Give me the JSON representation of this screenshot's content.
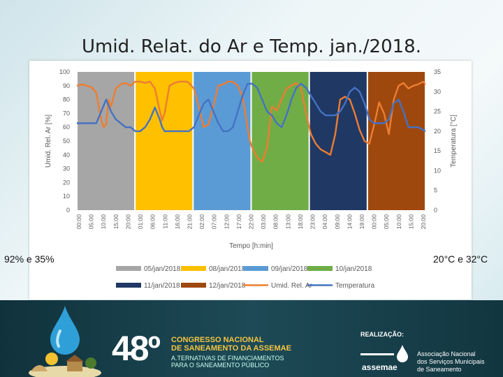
{
  "slide": {
    "title": "Umid. Relat. do Ar e Temp. jan./2018.",
    "left_note": "92% e 35%",
    "right_note": "20°C e 32°C"
  },
  "footer": {
    "number": "48º",
    "event_line1": "CONGRESSO NACIONAL",
    "event_line2": "DE SANEAMENTO DA ASSEMAE",
    "event_line3": "A.TERNATIVAS DE FINANCIAMENTOS",
    "event_line4": "PARA O SANEAMENTO PÚBLICO",
    "realizacao": "REALIZAÇÃO:",
    "org_name": "assemae",
    "org_line1": "Associação Nacional",
    "org_line2": "dos Serviços Municipais",
    "org_line3": "de Saneamento"
  },
  "chart_data": {
    "type": "line",
    "xlabel": "Tempo [h:min]",
    "ylabel": "Umid. Rel. Ar [%]",
    "y2label": "Temperatura [°C]",
    "ylim": [
      0,
      100
    ],
    "y2lim": [
      0,
      35
    ],
    "y_ticks": [
      0,
      10,
      20,
      30,
      40,
      50,
      60,
      70,
      80,
      90,
      100
    ],
    "y2_ticks": [
      0,
      5,
      10,
      15,
      20,
      25,
      30,
      35
    ],
    "x_ticks": [
      "00:00",
      "05:00",
      "10:00",
      "15:00",
      "20:00",
      "01:00",
      "06:00",
      "11:00",
      "16:00",
      "21:00",
      "02:00",
      "07:00",
      "12:00",
      "17:00",
      "22:00",
      "03:00",
      "08:00",
      "13:00",
      "18:00",
      "23:00",
      "04:00",
      "09:00",
      "14:00",
      "19:00",
      "00:00",
      "05:00",
      "10:00",
      "15:00",
      "20:00"
    ],
    "day_bands": [
      {
        "label": "05/jan/2018",
        "color": "#a6a6a6"
      },
      {
        "label": "08/jan/2018",
        "color": "#ffc000"
      },
      {
        "label": "09/jan/2018",
        "color": "#5b9bd5"
      },
      {
        "label": "10/jan/2018",
        "color": "#70ad47"
      },
      {
        "label": "11/jan/2018",
        "color": "#203864"
      },
      {
        "label": "12/jan/2018",
        "color": "#9e480e"
      }
    ],
    "legend": [
      {
        "label": "05/jan/2018",
        "color": "#a6a6a6",
        "kind": "box"
      },
      {
        "label": "08/jan/2018",
        "color": "#ffc000",
        "kind": "box"
      },
      {
        "label": "09/jan/2018",
        "color": "#5b9bd5",
        "kind": "box"
      },
      {
        "label": "10/jan/2018",
        "color": "#70ad47",
        "kind": "box"
      },
      {
        "label": "11/jan/2018",
        "color": "#203864",
        "kind": "box"
      },
      {
        "label": "12/jan/2018",
        "color": "#9e480e",
        "kind": "box"
      },
      {
        "label": "Umid. Rel. Ar",
        "color": "#ed7d31",
        "kind": "line"
      },
      {
        "label": "Temperatura",
        "color": "#4472c4",
        "kind": "line"
      }
    ],
    "series": [
      {
        "name": "Umid. Rel. Ar",
        "axis": "left",
        "color": "#ed7d31",
        "x": [
          0,
          2,
          4,
          6,
          8,
          10,
          11,
          12,
          13,
          14,
          16,
          18,
          20,
          22,
          24,
          26,
          28,
          30,
          32,
          34,
          35,
          36,
          38,
          40,
          42,
          44,
          45,
          46,
          48,
          50,
          52,
          54,
          56,
          58,
          60,
          62,
          64,
          66,
          68,
          70,
          71,
          72,
          74,
          76,
          78,
          80,
          82,
          84,
          86,
          88,
          90,
          92,
          94,
          96,
          98,
          100,
          102,
          104,
          106,
          108,
          110,
          112,
          114,
          116,
          118,
          120,
          122,
          124,
          126,
          128,
          130,
          132,
          134,
          136,
          138,
          140,
          142,
          143
        ],
        "y": [
          90,
          91,
          90,
          89,
          85,
          65,
          60,
          62,
          80,
          75,
          88,
          91,
          92,
          90,
          93,
          93,
          92,
          93,
          88,
          72,
          65,
          70,
          90,
          92,
          93,
          93,
          93,
          92,
          88,
          75,
          60,
          62,
          75,
          90,
          91,
          93,
          93,
          90,
          82,
          60,
          50,
          45,
          38,
          35,
          45,
          75,
          72,
          80,
          88,
          90,
          92,
          88,
          70,
          55,
          48,
          44,
          42,
          40,
          55,
          80,
          82,
          80,
          70,
          58,
          50,
          48,
          62,
          78,
          70,
          55,
          80,
          90,
          92,
          88,
          90,
          91,
          93,
          91
        ]
      },
      {
        "name": "Temperatura",
        "axis": "right",
        "color": "#4472c4",
        "x": [
          0,
          4,
          8,
          10,
          12,
          14,
          16,
          18,
          20,
          22,
          24,
          26,
          28,
          30,
          32,
          34,
          35,
          36,
          38,
          40,
          42,
          44,
          46,
          48,
          50,
          52,
          54,
          56,
          58,
          60,
          62,
          64,
          66,
          68,
          70,
          72,
          74,
          76,
          78,
          80,
          82,
          84,
          86,
          88,
          90,
          92,
          94,
          96,
          98,
          100,
          102,
          104,
          106,
          108,
          110,
          112,
          114,
          116,
          118,
          120,
          122,
          124,
          126,
          128,
          130,
          132,
          134,
          136,
          138,
          140,
          143
        ],
        "y": [
          22,
          22,
          22,
          25,
          28,
          25,
          23,
          22,
          21,
          21,
          20,
          20,
          21,
          23,
          26,
          23,
          21,
          20,
          20,
          20,
          20,
          20,
          20,
          21,
          24,
          27,
          28,
          25,
          22,
          20,
          20,
          21,
          25,
          29,
          32,
          32,
          31,
          28,
          25,
          24,
          22,
          21,
          24,
          28,
          31,
          32,
          31,
          29,
          27,
          25,
          24,
          24,
          24,
          25,
          27,
          30,
          31,
          30,
          27,
          23,
          22,
          22,
          22,
          23,
          27,
          28,
          25,
          21,
          21,
          21,
          20
        ]
      }
    ]
  }
}
